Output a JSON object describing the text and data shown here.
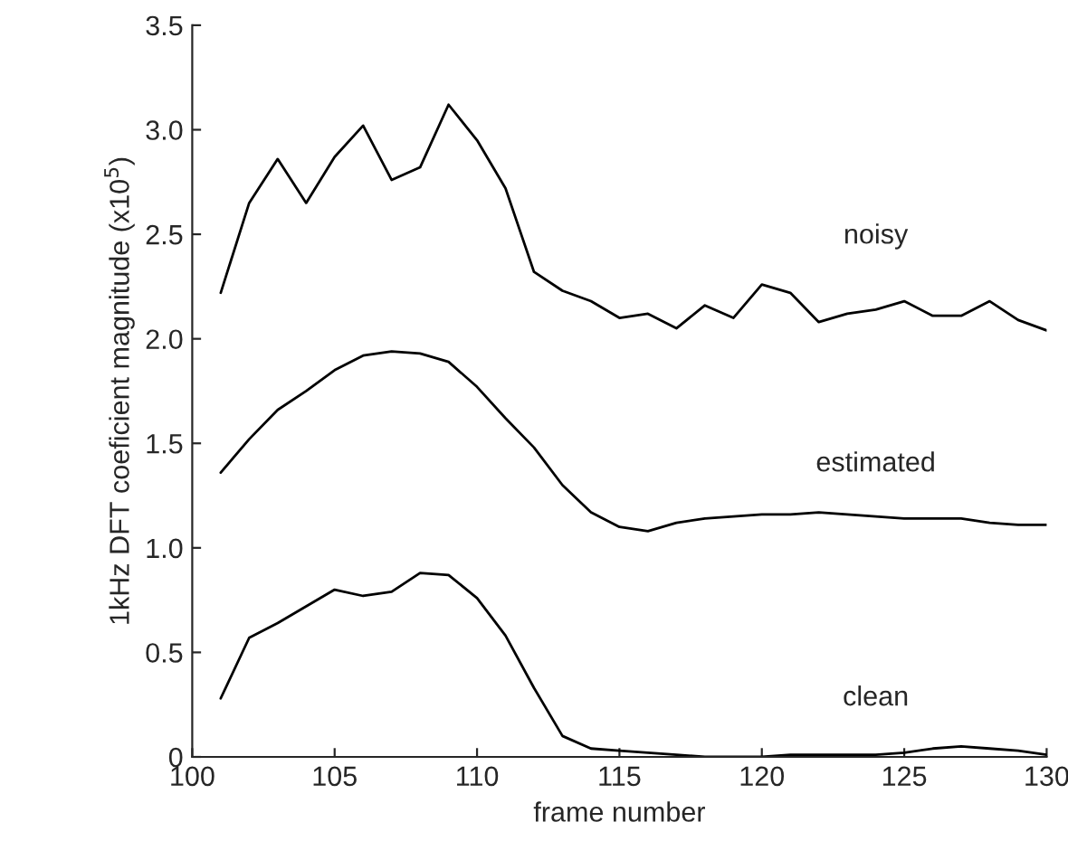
{
  "chart_data": {
    "type": "line",
    "xlabel": "frame number",
    "ylabel": "1kHz DFT coeficient magnitude (x10$^{5}$)",
    "x": [
      101,
      102,
      103,
      104,
      105,
      106,
      107,
      108,
      109,
      110,
      111,
      112,
      113,
      114,
      115,
      116,
      117,
      118,
      119,
      120,
      121,
      122,
      123,
      124,
      125,
      126,
      127,
      128,
      129,
      130
    ],
    "series": [
      {
        "name": "noisy",
        "color": "#000000",
        "values": [
          2.22,
          2.65,
          2.86,
          2.65,
          2.87,
          3.02,
          2.76,
          2.82,
          3.12,
          2.95,
          2.72,
          2.32,
          2.23,
          2.18,
          2.1,
          2.12,
          2.05,
          2.16,
          2.1,
          2.26,
          2.22,
          2.08,
          2.12,
          2.14,
          2.18,
          2.11,
          2.11,
          2.18,
          2.09,
          2.04
        ]
      },
      {
        "name": "estimated",
        "color": "#000000",
        "values": [
          1.36,
          1.52,
          1.66,
          1.75,
          1.85,
          1.92,
          1.94,
          1.93,
          1.89,
          1.77,
          1.62,
          1.48,
          1.3,
          1.17,
          1.1,
          1.08,
          1.12,
          1.14,
          1.15,
          1.16,
          1.16,
          1.17,
          1.16,
          1.15,
          1.14,
          1.14,
          1.14,
          1.12,
          1.11,
          1.11
        ]
      },
      {
        "name": "clean",
        "color": "#000000",
        "values": [
          0.28,
          0.57,
          0.64,
          0.72,
          0.8,
          0.77,
          0.79,
          0.88,
          0.87,
          0.76,
          0.58,
          0.33,
          0.1,
          0.04,
          0.03,
          0.02,
          0.01,
          0.0,
          0.0,
          0.0,
          0.01,
          0.01,
          0.01,
          0.01,
          0.02,
          0.04,
          0.05,
          0.04,
          0.03,
          0.01
        ]
      }
    ],
    "xlim": [
      100,
      130
    ],
    "ylim": [
      0,
      3.5
    ],
    "xticks": [
      100,
      105,
      110,
      115,
      120,
      125,
      130
    ],
    "yticks": [
      0,
      0.5,
      {
        "value": 1,
        "label": "1.0"
      },
      1.5,
      {
        "value": 2,
        "label": "2.0"
      },
      2.5,
      {
        "value": 3,
        "label": "3.0"
      },
      3.5
    ],
    "grid": false,
    "legend": false,
    "marker": "none",
    "line_style": "solid"
  }
}
